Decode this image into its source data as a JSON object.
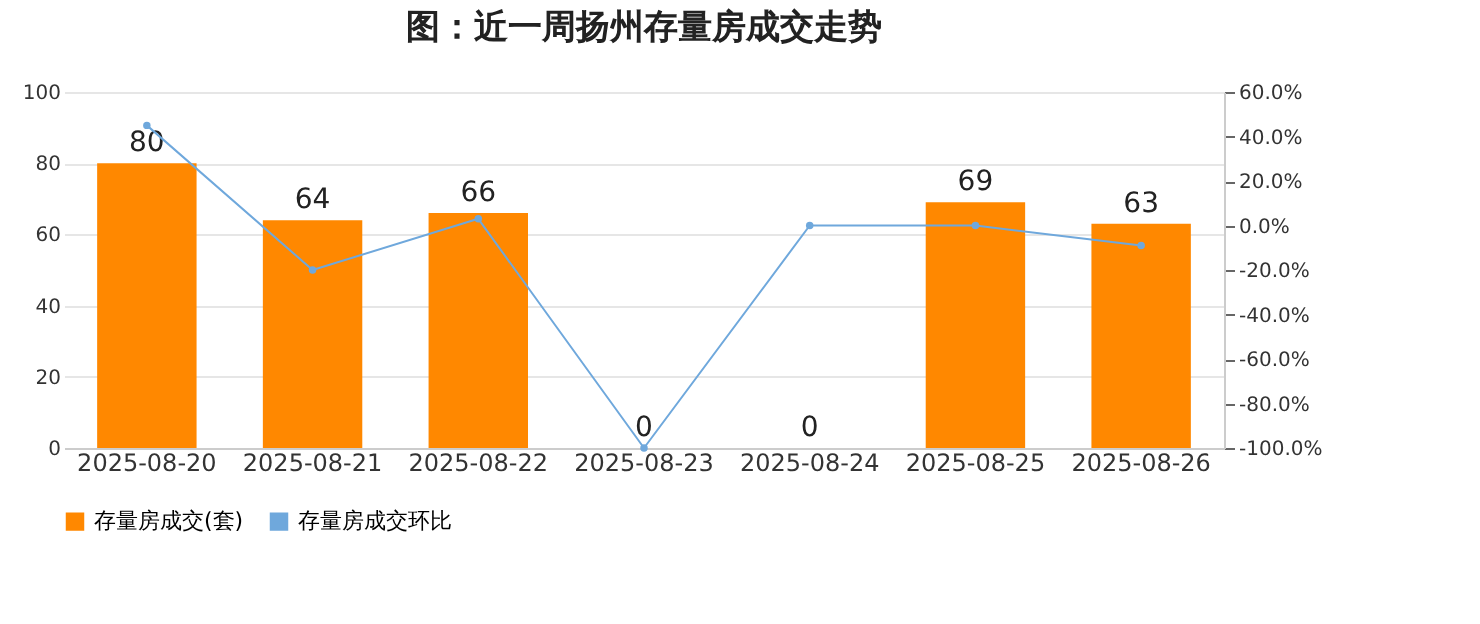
{
  "chart_data": {
    "type": "bar",
    "title": "图：近一周扬州存量房成交走势",
    "categories": [
      "2025-08-20",
      "2025-08-21",
      "2025-08-22",
      "2025-08-23",
      "2025-08-24",
      "2025-08-25",
      "2025-08-26"
    ],
    "series": [
      {
        "name": "存量房成交(套)",
        "color": "#ff8800",
        "values": [
          80,
          64,
          66,
          0,
          0,
          69,
          63
        ],
        "value_labels": [
          "80",
          "64",
          "66",
          "0",
          "0",
          "69",
          "63"
        ]
      },
      {
        "name": "存量房成交环比",
        "type": "line",
        "axis": "y2",
        "color": "#6fa8dc",
        "values": [
          45,
          -20,
          3,
          -100,
          0,
          0,
          -9
        ]
      }
    ],
    "ylim": [
      0,
      100
    ],
    "yticks": [
      0,
      20,
      40,
      60,
      80,
      100
    ],
    "y2lim": [
      -100,
      60
    ],
    "y2ticks": [
      {
        "value": -100,
        "label": "-100.0%"
      },
      {
        "value": -80,
        "label": "-80.0%"
      },
      {
        "value": -60,
        "label": "-60.0%"
      },
      {
        "value": -40,
        "label": "-40.0%"
      },
      {
        "value": -20,
        "label": "-20.0%"
      },
      {
        "value": 0,
        "label": "0.0%"
      },
      {
        "value": 20,
        "label": "20.0%"
      },
      {
        "value": 40,
        "label": "40.0%"
      },
      {
        "value": 60,
        "label": "60.0%"
      }
    ],
    "grid": "y",
    "legend": "bottom",
    "marker": "circle"
  }
}
